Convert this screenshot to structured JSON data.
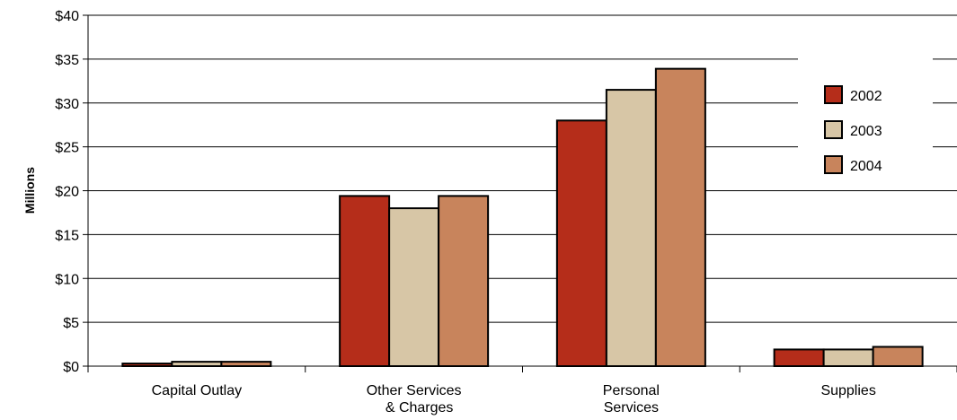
{
  "chart_data": {
    "type": "bar",
    "title": "",
    "xlabel": "",
    "ylabel": "Millions",
    "ylim": [
      0,
      40
    ],
    "yticks": [
      0,
      5,
      10,
      15,
      20,
      25,
      30,
      35,
      40
    ],
    "ytick_labels": [
      "$0",
      "$5",
      "$10",
      "$15",
      "$20",
      "$25",
      "$30",
      "$35",
      "$40"
    ],
    "categories": [
      [
        "Capital Outlay"
      ],
      [
        "Other Services",
        "& Charges"
      ],
      [
        "Personal",
        "Services"
      ],
      [
        "Supplies"
      ]
    ],
    "series": [
      {
        "name": "2002",
        "color": "#b52d1a",
        "values": [
          0.3,
          19.4,
          28.0,
          1.9
        ]
      },
      {
        "name": "2003",
        "color": "#d7c6a6",
        "values": [
          0.5,
          18.0,
          31.5,
          1.9
        ]
      },
      {
        "name": "2004",
        "color": "#c8845c",
        "values": [
          0.5,
          19.4,
          33.9,
          2.2
        ]
      }
    ],
    "grid": true,
    "legend_position": "top-right"
  }
}
